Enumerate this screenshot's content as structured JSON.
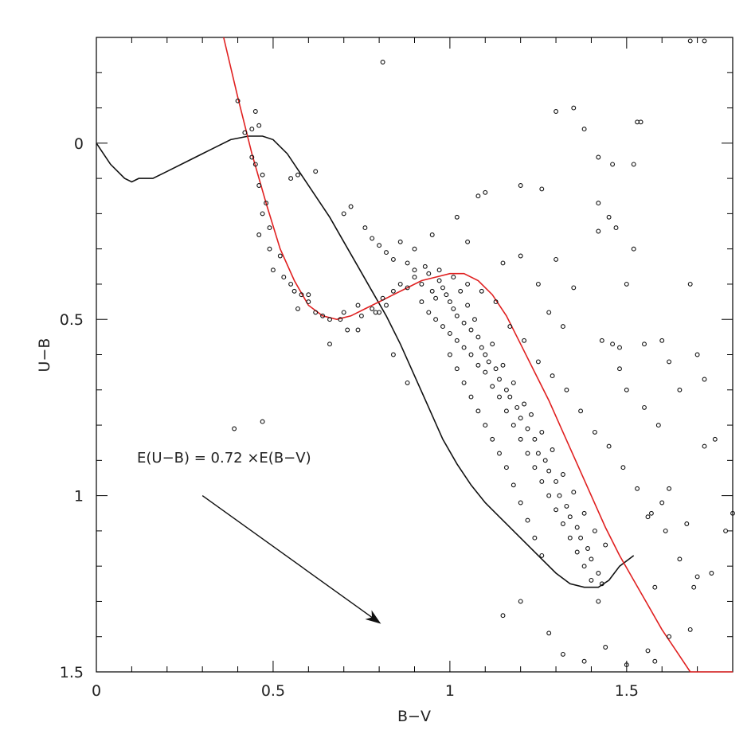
{
  "chart_data": {
    "type": "scatter",
    "title": "",
    "xlabel": "B−V",
    "ylabel": "U−B",
    "xlim": [
      0,
      1.8
    ],
    "ylim": [
      -0.3,
      1.5
    ],
    "y_inverted": true,
    "x_ticks": [
      {
        "value": 0,
        "label": "0"
      },
      {
        "value": 0.5,
        "label": "0.5"
      },
      {
        "value": 1,
        "label": "1"
      },
      {
        "value": 1.5,
        "label": "1.5"
      }
    ],
    "y_ticks": [
      {
        "value": 0,
        "label": "0"
      },
      {
        "value": 0.5,
        "label": "0.5"
      },
      {
        "value": 1,
        "label": "1"
      },
      {
        "value": 1.5,
        "label": "1.5"
      }
    ],
    "x_minor_step": 0.1,
    "y_minor_step": 0.1,
    "colors": {
      "stars": "#111111",
      "intrinsic": "#111111",
      "reddened": "#e02020",
      "axes": "#000000"
    },
    "annotation": {
      "text": "E(U−B) = 0.72 ×E(B−V)"
    },
    "reddening_vector": {
      "x0": 0.3,
      "y0": 1.0,
      "x1": 0.8,
      "y1": 1.36
    },
    "intrinsic_sequence": {
      "points": [
        [
          0.0,
          0.0
        ],
        [
          0.04,
          0.06
        ],
        [
          0.08,
          0.1
        ],
        [
          0.1,
          0.11
        ],
        [
          0.12,
          0.1
        ],
        [
          0.16,
          0.1
        ],
        [
          0.2,
          0.08
        ],
        [
          0.26,
          0.05
        ],
        [
          0.32,
          0.02
        ],
        [
          0.38,
          -0.01
        ],
        [
          0.43,
          -0.02
        ],
        [
          0.47,
          -0.02
        ],
        [
          0.5,
          -0.01
        ],
        [
          0.54,
          0.03
        ],
        [
          0.58,
          0.09
        ],
        [
          0.62,
          0.15
        ],
        [
          0.66,
          0.21
        ],
        [
          0.7,
          0.28
        ],
        [
          0.74,
          0.35
        ],
        [
          0.78,
          0.42
        ],
        [
          0.82,
          0.49
        ],
        [
          0.86,
          0.57
        ],
        [
          0.9,
          0.66
        ],
        [
          0.94,
          0.75
        ],
        [
          0.98,
          0.84
        ],
        [
          1.02,
          0.91
        ],
        [
          1.06,
          0.97
        ],
        [
          1.1,
          1.02
        ],
        [
          1.14,
          1.06
        ],
        [
          1.18,
          1.1
        ],
        [
          1.22,
          1.14
        ],
        [
          1.26,
          1.18
        ],
        [
          1.3,
          1.22
        ],
        [
          1.34,
          1.25
        ],
        [
          1.38,
          1.26
        ],
        [
          1.42,
          1.26
        ],
        [
          1.45,
          1.24
        ],
        [
          1.48,
          1.2
        ],
        [
          1.52,
          1.17
        ]
      ]
    },
    "reddened_sequence": {
      "points": [
        [
          0.36,
          -0.3
        ],
        [
          0.4,
          -0.13
        ],
        [
          0.44,
          0.03
        ],
        [
          0.48,
          0.17
        ],
        [
          0.52,
          0.3
        ],
        [
          0.56,
          0.39
        ],
        [
          0.6,
          0.46
        ],
        [
          0.64,
          0.49
        ],
        [
          0.68,
          0.5
        ],
        [
          0.72,
          0.49
        ],
        [
          0.76,
          0.47
        ],
        [
          0.8,
          0.45
        ],
        [
          0.84,
          0.43
        ],
        [
          0.88,
          0.41
        ],
        [
          0.92,
          0.39
        ],
        [
          0.96,
          0.38
        ],
        [
          1.0,
          0.37
        ],
        [
          1.04,
          0.37
        ],
        [
          1.08,
          0.39
        ],
        [
          1.12,
          0.43
        ],
        [
          1.16,
          0.49
        ],
        [
          1.2,
          0.57
        ],
        [
          1.24,
          0.65
        ],
        [
          1.28,
          0.73
        ],
        [
          1.32,
          0.82
        ],
        [
          1.36,
          0.91
        ],
        [
          1.4,
          1.0
        ],
        [
          1.44,
          1.09
        ],
        [
          1.48,
          1.17
        ],
        [
          1.52,
          1.24
        ],
        [
          1.56,
          1.31
        ],
        [
          1.6,
          1.38
        ],
        [
          1.64,
          1.44
        ],
        [
          1.68,
          1.5
        ],
        [
          1.72,
          1.56
        ],
        [
          1.76,
          1.62
        ],
        [
          1.8,
          1.68
        ]
      ]
    },
    "stars": [
      [
        0.4,
        -0.12
      ],
      [
        0.45,
        -0.09
      ],
      [
        0.44,
        -0.04
      ],
      [
        0.46,
        -0.05
      ],
      [
        0.42,
        -0.03
      ],
      [
        0.44,
        0.04
      ],
      [
        0.45,
        0.06
      ],
      [
        0.47,
        0.09
      ],
      [
        0.46,
        0.12
      ],
      [
        0.48,
        0.17
      ],
      [
        0.47,
        0.2
      ],
      [
        0.49,
        0.24
      ],
      [
        0.46,
        0.26
      ],
      [
        0.49,
        0.3
      ],
      [
        0.52,
        0.32
      ],
      [
        0.5,
        0.36
      ],
      [
        0.53,
        0.38
      ],
      [
        0.55,
        0.4
      ],
      [
        0.56,
        0.42
      ],
      [
        0.58,
        0.43
      ],
      [
        0.6,
        0.45
      ],
      [
        0.57,
        0.47
      ],
      [
        0.62,
        0.48
      ],
      [
        0.64,
        0.49
      ],
      [
        0.66,
        0.5
      ],
      [
        0.69,
        0.5
      ],
      [
        0.7,
        0.48
      ],
      [
        0.71,
        0.53
      ],
      [
        0.74,
        0.46
      ],
      [
        0.75,
        0.49
      ],
      [
        0.78,
        0.47
      ],
      [
        0.79,
        0.48
      ],
      [
        0.81,
        0.44
      ],
      [
        0.82,
        0.46
      ],
      [
        0.84,
        0.42
      ],
      [
        0.86,
        0.4
      ],
      [
        0.88,
        0.41
      ],
      [
        0.9,
        0.38
      ],
      [
        0.92,
        0.4
      ],
      [
        0.94,
        0.37
      ],
      [
        0.95,
        0.42
      ],
      [
        0.96,
        0.44
      ],
      [
        0.97,
        0.39
      ],
      [
        0.98,
        0.41
      ],
      [
        0.99,
        0.43
      ],
      [
        1.0,
        0.45
      ],
      [
        1.01,
        0.47
      ],
      [
        1.02,
        0.49
      ],
      [
        1.03,
        0.42
      ],
      [
        1.04,
        0.51
      ],
      [
        1.05,
        0.46
      ],
      [
        1.06,
        0.53
      ],
      [
        1.07,
        0.5
      ],
      [
        1.08,
        0.55
      ],
      [
        1.09,
        0.58
      ],
      [
        1.1,
        0.6
      ],
      [
        1.11,
        0.62
      ],
      [
        1.12,
        0.57
      ],
      [
        1.13,
        0.64
      ],
      [
        1.14,
        0.67
      ],
      [
        1.15,
        0.63
      ],
      [
        1.16,
        0.7
      ],
      [
        1.17,
        0.72
      ],
      [
        1.18,
        0.68
      ],
      [
        1.19,
        0.75
      ],
      [
        1.2,
        0.78
      ],
      [
        1.21,
        0.74
      ],
      [
        1.22,
        0.81
      ],
      [
        1.23,
        0.77
      ],
      [
        1.24,
        0.84
      ],
      [
        1.25,
        0.88
      ],
      [
        1.26,
        0.82
      ],
      [
        1.27,
        0.9
      ],
      [
        1.28,
        0.93
      ],
      [
        1.29,
        0.87
      ],
      [
        1.3,
        0.96
      ],
      [
        1.31,
        1.0
      ],
      [
        1.32,
        0.94
      ],
      [
        1.33,
        1.03
      ],
      [
        1.34,
        1.06
      ],
      [
        1.35,
        0.99
      ],
      [
        1.36,
        1.09
      ],
      [
        1.37,
        1.12
      ],
      [
        1.38,
        1.05
      ],
      [
        1.39,
        1.15
      ],
      [
        1.4,
        1.18
      ],
      [
        1.41,
        1.1
      ],
      [
        1.42,
        1.22
      ],
      [
        1.43,
        1.25
      ],
      [
        1.44,
        1.14
      ],
      [
        0.92,
        0.45
      ],
      [
        0.94,
        0.48
      ],
      [
        0.96,
        0.5
      ],
      [
        0.98,
        0.52
      ],
      [
        1.0,
        0.54
      ],
      [
        1.02,
        0.56
      ],
      [
        1.04,
        0.58
      ],
      [
        1.06,
        0.6
      ],
      [
        1.08,
        0.63
      ],
      [
        1.1,
        0.65
      ],
      [
        1.12,
        0.69
      ],
      [
        1.14,
        0.72
      ],
      [
        1.16,
        0.76
      ],
      [
        1.18,
        0.8
      ],
      [
        1.2,
        0.84
      ],
      [
        1.22,
        0.88
      ],
      [
        1.24,
        0.92
      ],
      [
        1.26,
        0.96
      ],
      [
        1.28,
        1.0
      ],
      [
        1.3,
        1.04
      ],
      [
        1.32,
        1.08
      ],
      [
        1.34,
        1.12
      ],
      [
        1.36,
        1.16
      ],
      [
        1.38,
        1.2
      ],
      [
        1.4,
        1.24
      ],
      [
        1.42,
        1.3
      ],
      [
        0.88,
        0.34
      ],
      [
        0.9,
        0.36
      ],
      [
        0.93,
        0.35
      ],
      [
        0.97,
        0.36
      ],
      [
        1.01,
        0.38
      ],
      [
        1.05,
        0.4
      ],
      [
        1.09,
        0.42
      ],
      [
        1.13,
        0.45
      ],
      [
        1.17,
        0.52
      ],
      [
        1.21,
        0.56
      ],
      [
        1.25,
        0.62
      ],
      [
        1.29,
        0.66
      ],
      [
        1.33,
        0.7
      ],
      [
        1.37,
        0.76
      ],
      [
        1.41,
        0.82
      ],
      [
        1.45,
        0.86
      ],
      [
        1.49,
        0.92
      ],
      [
        1.53,
        0.98
      ],
      [
        1.57,
        1.05
      ],
      [
        1.61,
        1.1
      ],
      [
        1.65,
        1.18
      ],
      [
        1.69,
        1.26
      ],
      [
        1.0,
        0.6
      ],
      [
        1.02,
        0.64
      ],
      [
        1.04,
        0.68
      ],
      [
        1.06,
        0.72
      ],
      [
        1.08,
        0.76
      ],
      [
        1.1,
        0.8
      ],
      [
        1.12,
        0.84
      ],
      [
        1.14,
        0.88
      ],
      [
        1.16,
        0.92
      ],
      [
        1.18,
        0.97
      ],
      [
        1.2,
        1.02
      ],
      [
        1.22,
        1.07
      ],
      [
        1.24,
        1.12
      ],
      [
        1.26,
        1.17
      ],
      [
        1.15,
        1.34
      ],
      [
        1.2,
        1.3
      ],
      [
        1.28,
        1.39
      ],
      [
        1.32,
        1.45
      ],
      [
        1.38,
        1.47
      ],
      [
        1.44,
        1.43
      ],
      [
        1.5,
        1.48
      ],
      [
        1.56,
        1.44
      ],
      [
        0.55,
        0.1
      ],
      [
        0.57,
        0.09
      ],
      [
        0.62,
        0.08
      ],
      [
        0.7,
        0.2
      ],
      [
        0.72,
        0.18
      ],
      [
        0.76,
        0.24
      ],
      [
        0.78,
        0.27
      ],
      [
        0.8,
        0.29
      ],
      [
        0.82,
        0.31
      ],
      [
        0.84,
        0.33
      ],
      [
        0.86,
        0.28
      ],
      [
        0.9,
        0.3
      ],
      [
        0.95,
        0.26
      ],
      [
        1.02,
        0.21
      ],
      [
        1.08,
        0.15
      ],
      [
        1.1,
        0.14
      ],
      [
        1.2,
        0.12
      ],
      [
        1.26,
        0.13
      ],
      [
        1.05,
        0.28
      ],
      [
        1.15,
        0.34
      ],
      [
        1.2,
        0.32
      ],
      [
        1.3,
        0.33
      ],
      [
        1.25,
        0.4
      ],
      [
        1.35,
        0.41
      ],
      [
        1.32,
        0.52
      ],
      [
        1.28,
        0.48
      ],
      [
        1.42,
        0.25
      ],
      [
        1.45,
        0.21
      ],
      [
        1.47,
        0.24
      ],
      [
        1.42,
        0.17
      ],
      [
        1.5,
        0.4
      ],
      [
        1.52,
        0.3
      ],
      [
        1.43,
        0.56
      ],
      [
        1.46,
        0.57
      ],
      [
        1.48,
        0.58
      ],
      [
        1.55,
        0.57
      ],
      [
        1.6,
        0.56
      ],
      [
        1.62,
        0.62
      ],
      [
        1.65,
        0.7
      ],
      [
        1.7,
        0.6
      ],
      [
        1.72,
        0.67
      ],
      [
        1.75,
        0.84
      ],
      [
        1.68,
        0.4
      ],
      [
        1.78,
        1.1
      ],
      [
        1.8,
        1.05
      ],
      [
        1.72,
        0.86
      ],
      [
        1.67,
        1.08
      ],
      [
        1.7,
        1.23
      ],
      [
        1.74,
        1.22
      ],
      [
        1.68,
        1.38
      ],
      [
        1.62,
        1.4
      ],
      [
        1.58,
        1.47
      ],
      [
        1.58,
        1.26
      ],
      [
        1.56,
        1.06
      ],
      [
        1.6,
        1.02
      ],
      [
        1.62,
        0.98
      ],
      [
        1.59,
        0.8
      ],
      [
        1.55,
        0.75
      ],
      [
        1.5,
        0.7
      ],
      [
        1.48,
        0.64
      ],
      [
        1.3,
        -0.09
      ],
      [
        1.35,
        -0.1
      ],
      [
        1.38,
        -0.04
      ],
      [
        1.42,
        0.04
      ],
      [
        1.46,
        0.06
      ],
      [
        1.53,
        -0.06
      ],
      [
        1.52,
        0.06
      ],
      [
        1.54,
        -0.06
      ],
      [
        1.68,
        -0.29
      ],
      [
        1.72,
        -0.29
      ],
      [
        0.81,
        -0.23
      ],
      [
        0.39,
        0.81
      ],
      [
        0.47,
        0.79
      ],
      [
        0.88,
        0.68
      ],
      [
        0.84,
        0.6
      ],
      [
        0.8,
        0.48
      ],
      [
        0.74,
        0.53
      ],
      [
        0.66,
        0.57
      ],
      [
        0.6,
        0.43
      ]
    ]
  }
}
